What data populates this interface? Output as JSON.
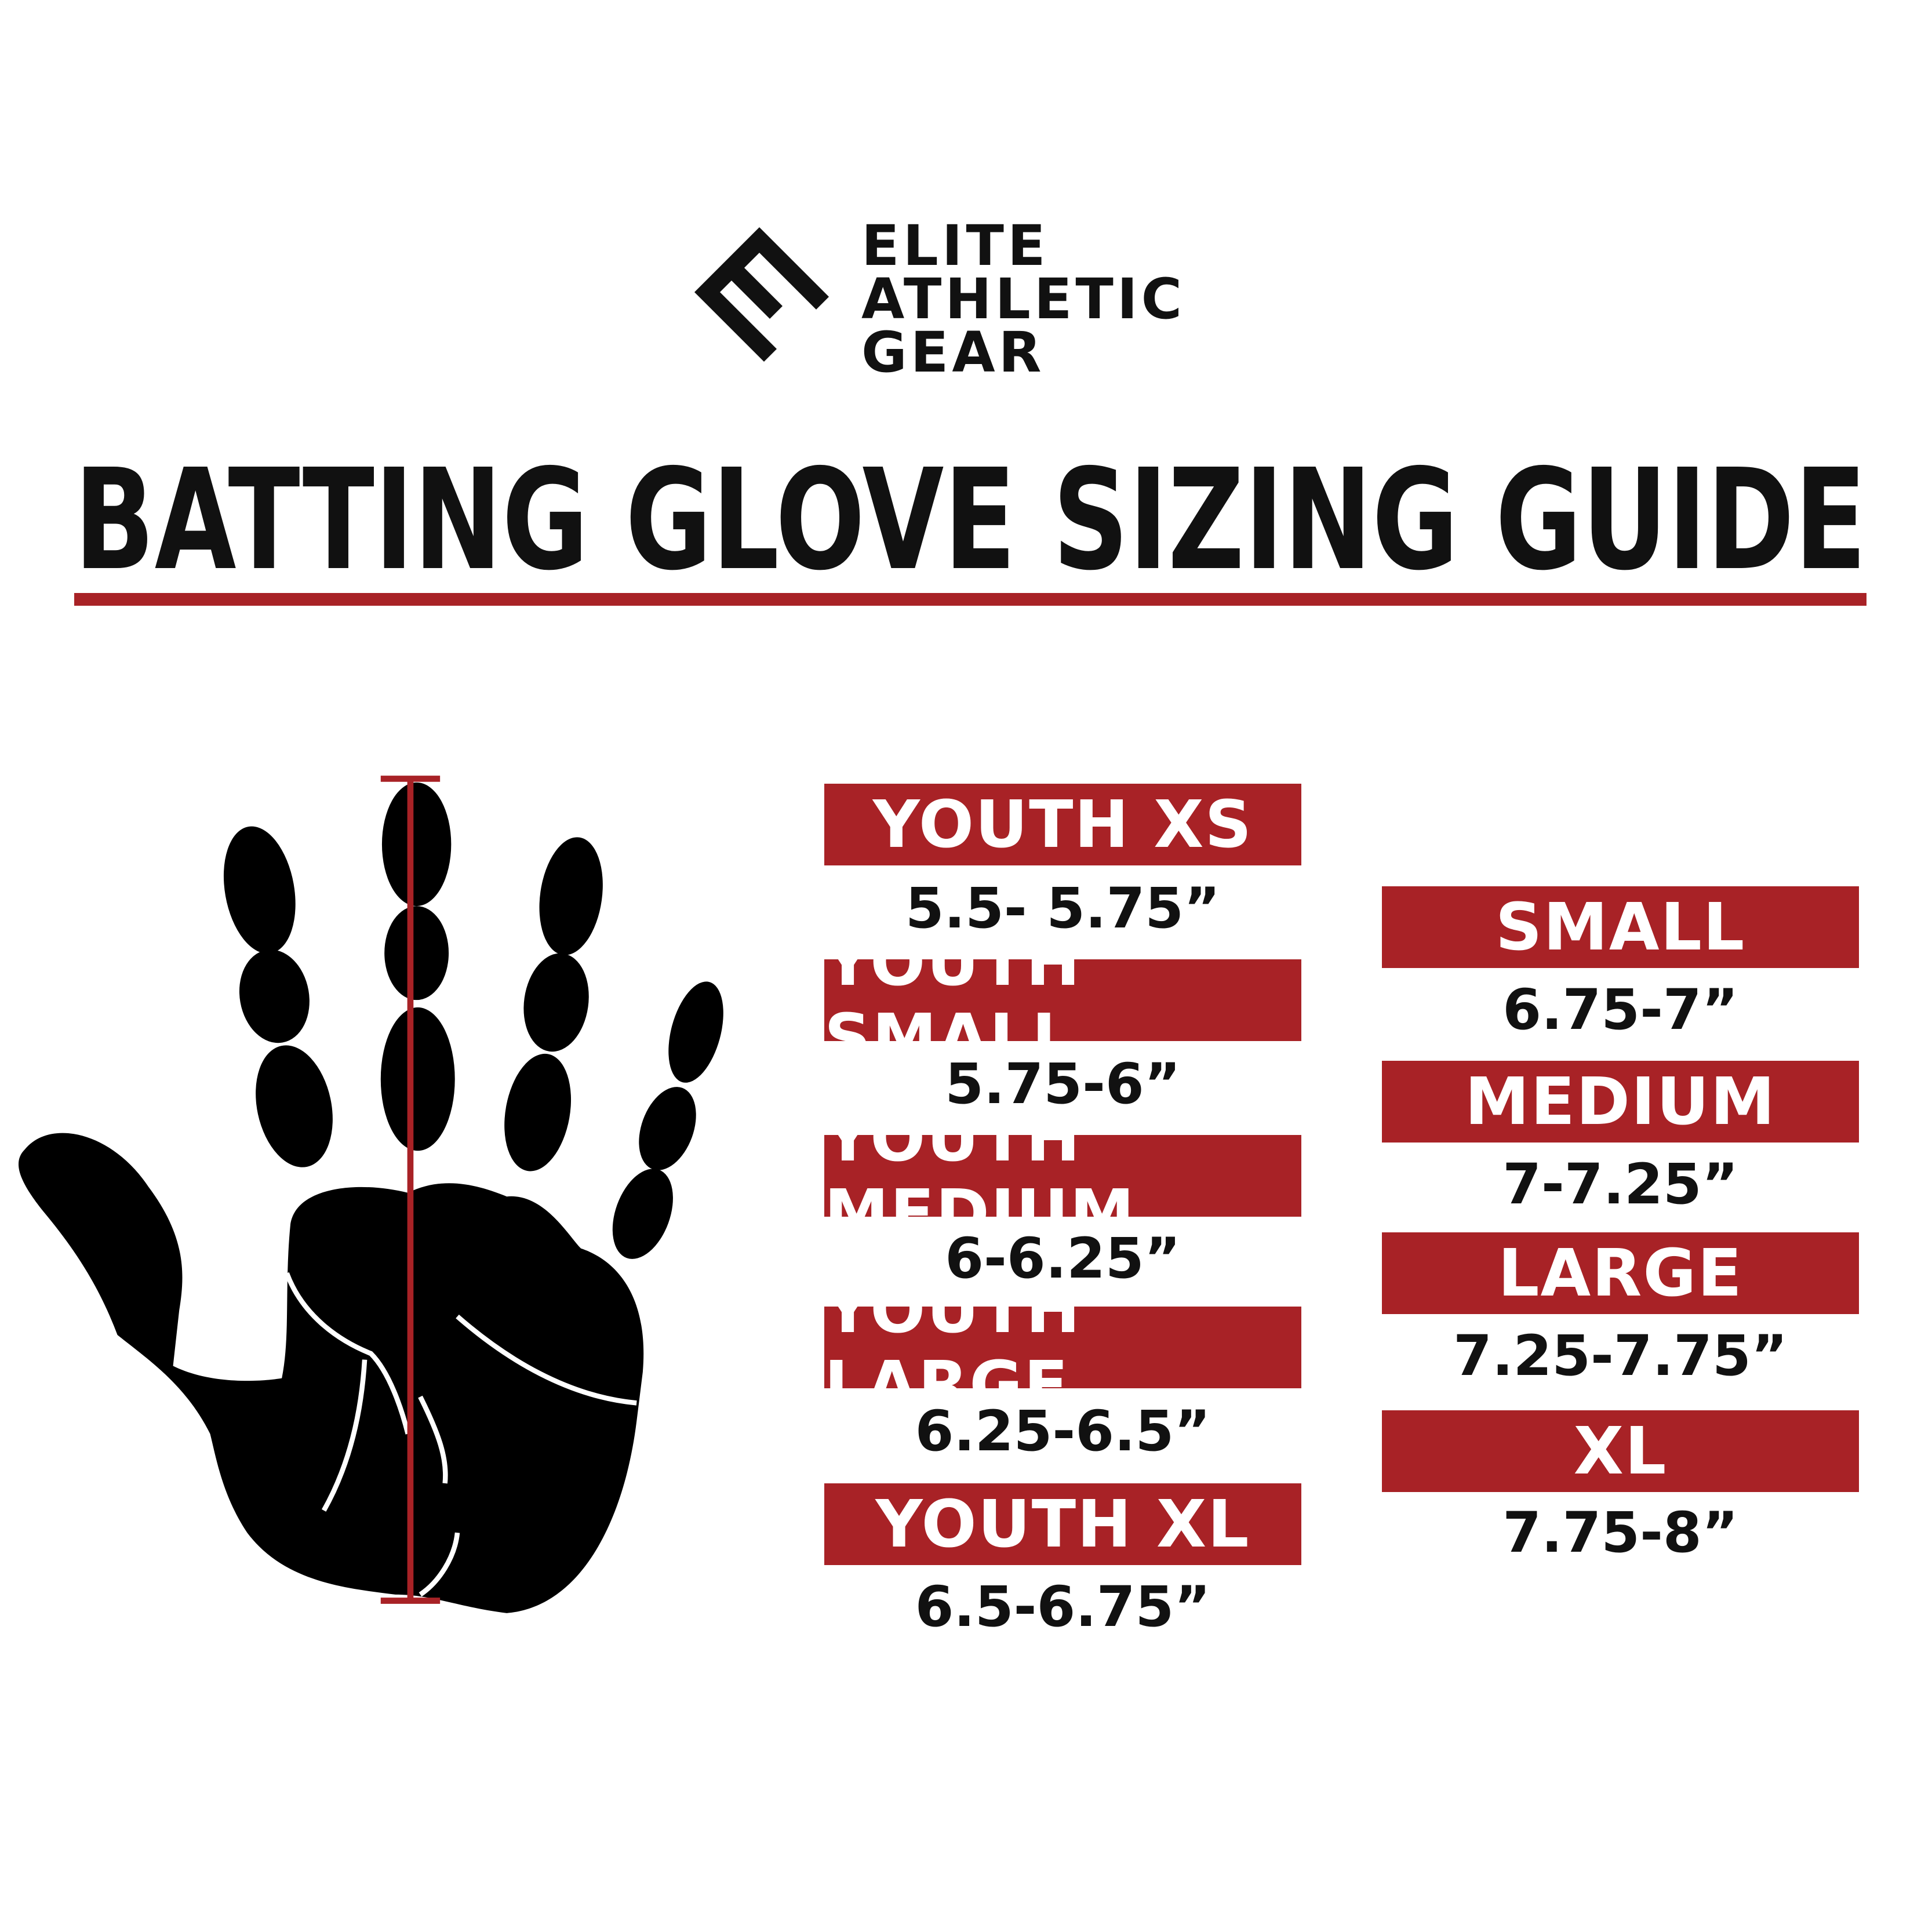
{
  "brand": {
    "line1": "ELITE",
    "line2": "ATHLETIC",
    "line3": "GEAR",
    "icon": "e-chevron-logo"
  },
  "title": "BATTING GLOVE SIZING GUIDE",
  "colors": {
    "accent": "#a82226",
    "text": "#111111",
    "background": "#ffffff"
  },
  "hand_icon": "hand-measurement-icon",
  "youth_sizes": [
    {
      "label": "YOUTH XS",
      "range": "5.5- 5.75”"
    },
    {
      "label": "YOUTH SMALL",
      "range": "5.75-6”"
    },
    {
      "label": "YOUTH MEDIUM",
      "range": "6-6.25”"
    },
    {
      "label": "YOUTH LARGE",
      "range": "6.25-6.5”"
    },
    {
      "label": "YOUTH XL",
      "range": "6.5-6.75”"
    }
  ],
  "adult_sizes": [
    {
      "label": "SMALL",
      "range": "6.75-7”"
    },
    {
      "label": "MEDIUM",
      "range": "7-7.25”"
    },
    {
      "label": "LARGE",
      "range": "7.25-7.75”"
    },
    {
      "label": "XL",
      "range": "7.75-8”"
    }
  ]
}
